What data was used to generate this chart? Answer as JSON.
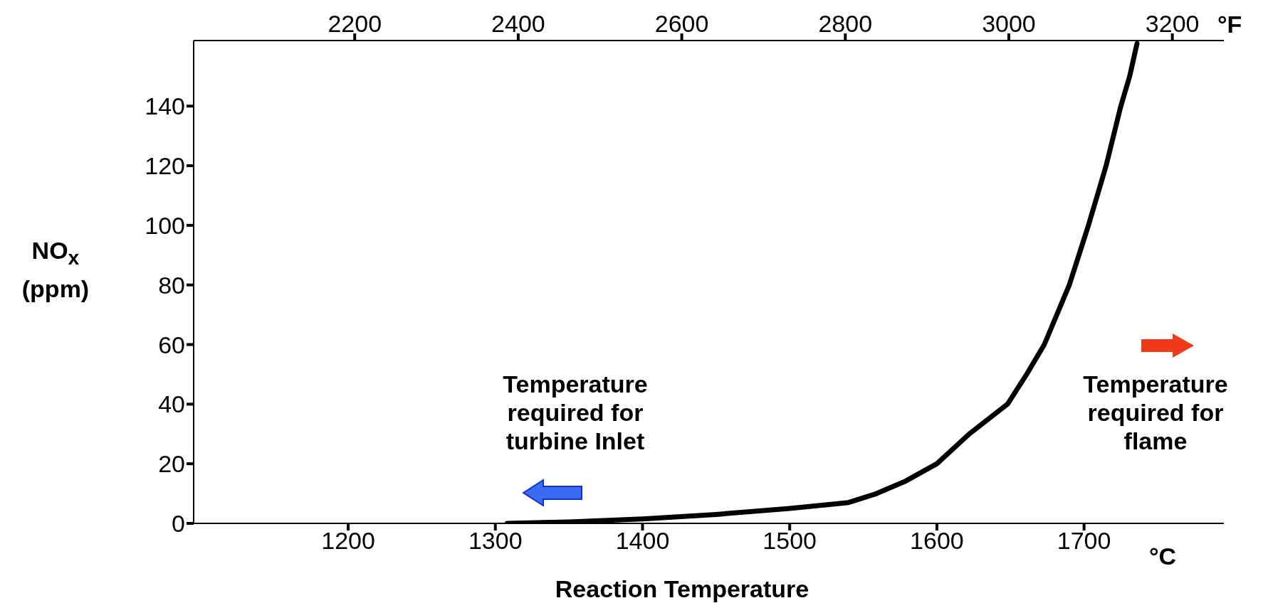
{
  "chart_data": {
    "type": "line",
    "xlabel": "Reaction Temperature",
    "ylabel": "NO$_{x}$ (ppm)",
    "x2label": "°F",
    "annotations": [
      "°C",
      "Temperature required for turbine Inlet",
      "Temperature required for flame"
    ],
    "series": [
      {
        "color": "#000000",
        "x": [
          1308,
          1350,
          1400,
          1450,
          1500,
          1540,
          1559,
          1578,
          1600,
          1622,
          1648,
          1661,
          1673,
          1690,
          1703,
          1715,
          1725,
          1731,
          1736
        ],
        "values": [
          0,
          0.5,
          1.5,
          3,
          5,
          7,
          10,
          14,
          20,
          30,
          40,
          50,
          60,
          80,
          100,
          120,
          140,
          150,
          161
        ]
      }
    ],
    "xlim": [
      1095,
      1795
    ],
    "xticks": [
      1200,
      1300,
      1400,
      1500,
      1600,
      1700
    ],
    "x2lim": [
      2003,
      3263
    ],
    "x2ticks": [
      2200,
      2400,
      2600,
      2800,
      3000,
      3200
    ],
    "ylim": [
      0,
      162
    ],
    "yticks": [
      0,
      20,
      40,
      60,
      80,
      100,
      120,
      140
    ],
    "grid": false,
    "legend": false,
    "line_style": "solid",
    "marker": "none"
  }
}
